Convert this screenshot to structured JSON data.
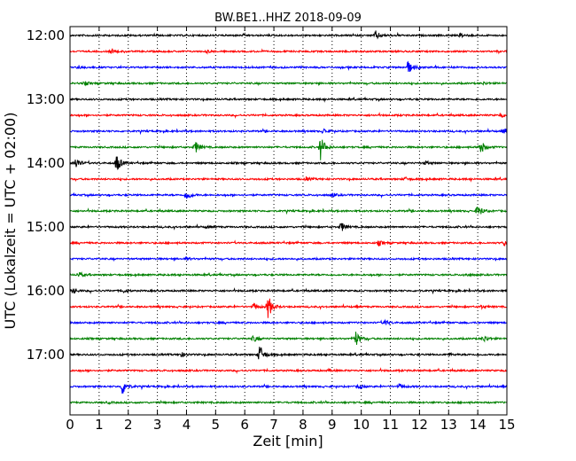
{
  "chart_data": {
    "type": "line",
    "title": "BW.BE1..HHZ 2018-09-09",
    "xlabel": "Zeit  [min]",
    "ylabel": "UTC (Lokalzeit = UTC + 02:00)",
    "xlim": [
      0,
      15
    ],
    "x_ticks": [
      "0",
      "1",
      "2",
      "3",
      "4",
      "5",
      "6",
      "7",
      "8",
      "9",
      "10",
      "11",
      "12",
      "13",
      "14",
      "15"
    ],
    "y_ticks": [
      {
        "label": "12:00",
        "trace": 0
      },
      {
        "label": "13:00",
        "trace": 4
      },
      {
        "label": "14:00",
        "trace": 8
      },
      {
        "label": "15:00",
        "trace": 12
      },
      {
        "label": "16:00",
        "trace": 16
      },
      {
        "label": "17:00",
        "trace": 20
      }
    ],
    "grid": "vertical dotted lines at each minute",
    "trace_interval_min": 15,
    "colors": [
      "#000000",
      "#ff0000",
      "#0000ff",
      "#008000"
    ],
    "traces": [
      {
        "start": "12:00",
        "events": [
          {
            "t": 10.5,
            "a": 5
          },
          {
            "t": 13.4,
            "a": 2
          }
        ]
      },
      {
        "start": "12:15",
        "events": [
          {
            "t": 1.4,
            "a": 2
          },
          {
            "t": 4.7,
            "a": 1.5
          }
        ]
      },
      {
        "start": "12:30",
        "events": [
          {
            "t": 11.6,
            "a": 8
          },
          {
            "t": 0.3,
            "a": 2
          }
        ]
      },
      {
        "start": "12:45",
        "events": [
          {
            "t": 0.5,
            "a": 2
          },
          {
            "t": 14.2,
            "a": 1.5
          }
        ]
      },
      {
        "start": "13:00",
        "events": []
      },
      {
        "start": "13:15",
        "events": [
          {
            "t": 14.8,
            "a": 2
          }
        ]
      },
      {
        "start": "13:30",
        "events": [
          {
            "t": 8.7,
            "a": 3
          },
          {
            "t": 14.9,
            "a": 3
          }
        ]
      },
      {
        "start": "13:45",
        "events": [
          {
            "t": 8.6,
            "a": 14
          },
          {
            "t": 4.3,
            "a": 7
          },
          {
            "t": 14.1,
            "a": 8
          }
        ]
      },
      {
        "start": "14:00",
        "events": [
          {
            "t": 0.2,
            "a": 7
          },
          {
            "t": 1.6,
            "a": 11
          },
          {
            "t": 12.2,
            "a": 2
          }
        ]
      },
      {
        "start": "14:15",
        "events": [
          {
            "t": 8.1,
            "a": 2
          },
          {
            "t": 11.5,
            "a": 2
          }
        ]
      },
      {
        "start": "14:30",
        "events": [
          {
            "t": 4.0,
            "a": 6
          },
          {
            "t": 9.0,
            "a": 2
          }
        ]
      },
      {
        "start": "14:45",
        "events": [
          {
            "t": 14.0,
            "a": 8
          }
        ]
      },
      {
        "start": "15:00",
        "events": [
          {
            "t": 9.3,
            "a": 6
          },
          {
            "t": 4.7,
            "a": 1.5
          }
        ]
      },
      {
        "start": "15:15",
        "events": [
          {
            "t": 10.6,
            "a": 3
          },
          {
            "t": 14.9,
            "a": 3
          }
        ]
      },
      {
        "start": "15:30",
        "events": [
          {
            "t": 4.0,
            "a": 1.5
          }
        ]
      },
      {
        "start": "15:45",
        "events": [
          {
            "t": 0.3,
            "a": 3
          },
          {
            "t": 13.6,
            "a": 1.5
          }
        ]
      },
      {
        "start": "16:00",
        "events": [
          {
            "t": 0.1,
            "a": 3
          },
          {
            "t": 1.8,
            "a": 2
          }
        ]
      },
      {
        "start": "16:15",
        "events": [
          {
            "t": 6.8,
            "a": 14
          },
          {
            "t": 6.3,
            "a": 4
          },
          {
            "t": 14.1,
            "a": 2
          }
        ]
      },
      {
        "start": "16:30",
        "events": [
          {
            "t": 10.8,
            "a": 3
          }
        ]
      },
      {
        "start": "16:45",
        "events": [
          {
            "t": 9.8,
            "a": 9
          },
          {
            "t": 6.3,
            "a": 4
          },
          {
            "t": 14.2,
            "a": 4
          }
        ]
      },
      {
        "start": "17:00",
        "events": [
          {
            "t": 6.5,
            "a": 12
          },
          {
            "t": 3.8,
            "a": 3
          },
          {
            "t": 13.0,
            "a": 1.5
          }
        ]
      },
      {
        "start": "17:15",
        "events": [
          {
            "t": 8.9,
            "a": 1
          }
        ]
      },
      {
        "start": "17:30",
        "events": [
          {
            "t": 1.8,
            "a": 10
          },
          {
            "t": 9.9,
            "a": 3
          },
          {
            "t": 11.3,
            "a": 3
          }
        ]
      },
      {
        "start": "17:45",
        "events": [
          {
            "t": 1.3,
            "a": 1
          }
        ]
      }
    ]
  }
}
